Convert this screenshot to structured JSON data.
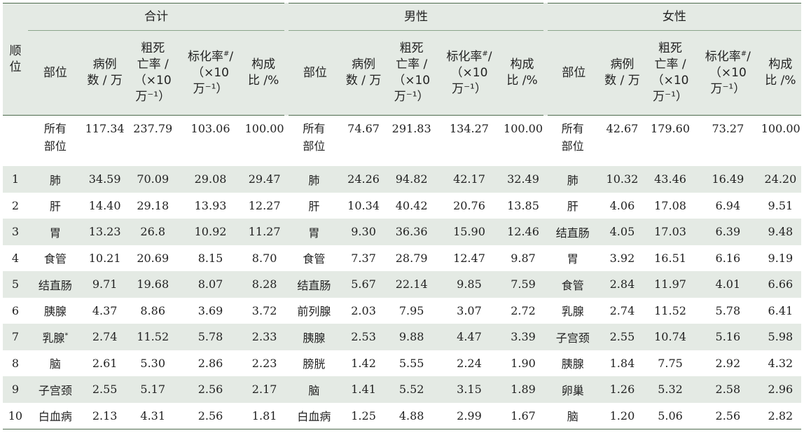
{
  "header": {
    "rank": "顺位",
    "groups": [
      "合计",
      "男性",
      "女性"
    ],
    "site": "部位",
    "cases_lines": [
      "病例",
      "数 / 万"
    ],
    "crude_lines": [
      "粗死",
      "亡率 /",
      "（×10",
      "万⁻¹）"
    ],
    "std_line1_pre": "标化率",
    "std_line1_sup": "#",
    "std_line1_post": "/",
    "std_line2": "（×10",
    "std_line3": "万⁻¹）",
    "prop_lines": [
      "构成",
      "比 /%"
    ]
  },
  "rows": [
    {
      "rank": "",
      "total": {
        "site": "所有\n部位",
        "cases": "117.34",
        "crude": "237.79",
        "std": "103.06",
        "prop": "100.00"
      },
      "male": {
        "site": "所有\n部位",
        "cases": "74.67",
        "crude": "291.83",
        "std": "134.27",
        "prop": "100.00"
      },
      "female": {
        "site": "所有\n部位",
        "cases": "42.67",
        "crude": "179.60",
        "std": "73.27",
        "prop": "100.00"
      }
    },
    {
      "rank": "1",
      "total": {
        "site": "肺",
        "cases": "34.59",
        "crude": "70.09",
        "std": "29.08",
        "prop": "29.47"
      },
      "male": {
        "site": "肺",
        "cases": "24.26",
        "crude": "94.82",
        "std": "42.17",
        "prop": "32.49"
      },
      "female": {
        "site": "肺",
        "cases": "10.32",
        "crude": "43.46",
        "std": "16.49",
        "prop": "24.20"
      }
    },
    {
      "rank": "2",
      "total": {
        "site": "肝",
        "cases": "14.40",
        "crude": "29.18",
        "std": "13.93",
        "prop": "12.27"
      },
      "male": {
        "site": "肝",
        "cases": "10.34",
        "crude": "40.42",
        "std": "20.76",
        "prop": "13.85"
      },
      "female": {
        "site": "肝",
        "cases": "4.06",
        "crude": "17.08",
        "std": "6.94",
        "prop": "9.51"
      }
    },
    {
      "rank": "3",
      "total": {
        "site": "胃",
        "cases": "13.23",
        "crude": "26.8",
        "std": "10.92",
        "prop": "11.27"
      },
      "male": {
        "site": "胃",
        "cases": "9.30",
        "crude": "36.36",
        "std": "15.90",
        "prop": "12.46"
      },
      "female": {
        "site": "结直肠",
        "cases": "4.05",
        "crude": "17.03",
        "std": "6.39",
        "prop": "9.48"
      }
    },
    {
      "rank": "4",
      "total": {
        "site": "食管",
        "cases": "10.21",
        "crude": "20.69",
        "std": "8.15",
        "prop": "8.70"
      },
      "male": {
        "site": "食管",
        "cases": "7.37",
        "crude": "28.79",
        "std": "12.47",
        "prop": "9.87"
      },
      "female": {
        "site": "胃",
        "cases": "3.92",
        "crude": "16.51",
        "std": "6.16",
        "prop": "9.19"
      }
    },
    {
      "rank": "5",
      "total": {
        "site": "结直肠",
        "cases": "9.71",
        "crude": "19.68",
        "std": "8.07",
        "prop": "8.28"
      },
      "male": {
        "site": "结直肠",
        "cases": "5.67",
        "crude": "22.14",
        "std": "9.85",
        "prop": "7.59"
      },
      "female": {
        "site": "食管",
        "cases": "2.84",
        "crude": "11.97",
        "std": "4.01",
        "prop": "6.66"
      }
    },
    {
      "rank": "6",
      "total": {
        "site": "胰腺",
        "cases": "4.37",
        "crude": "8.86",
        "std": "3.69",
        "prop": "3.72"
      },
      "male": {
        "site": "前列腺",
        "cases": "2.03",
        "crude": "7.95",
        "std": "3.07",
        "prop": "2.72"
      },
      "female": {
        "site": "乳腺",
        "cases": "2.74",
        "crude": "11.52",
        "std": "5.78",
        "prop": "6.41"
      }
    },
    {
      "rank": "7",
      "total": {
        "site": "乳腺",
        "site_sup": "*",
        "cases": "2.74",
        "crude": "11.52",
        "std": "5.78",
        "prop": "2.33"
      },
      "male": {
        "site": "胰腺",
        "cases": "2.53",
        "crude": "9.88",
        "std": "4.47",
        "prop": "3.39"
      },
      "female": {
        "site": "子宫颈",
        "cases": "2.55",
        "crude": "10.74",
        "std": "5.16",
        "prop": "5.98"
      }
    },
    {
      "rank": "8",
      "total": {
        "site": "脑",
        "cases": "2.61",
        "crude": "5.30",
        "std": "2.86",
        "prop": "2.23"
      },
      "male": {
        "site": "膀胱",
        "cases": "1.42",
        "crude": "5.55",
        "std": "2.24",
        "prop": "1.90"
      },
      "female": {
        "site": "胰腺",
        "cases": "1.84",
        "crude": "7.75",
        "std": "2.92",
        "prop": "4.32"
      }
    },
    {
      "rank": "9",
      "total": {
        "site": "子宫颈",
        "cases": "2.55",
        "crude": "5.17",
        "std": "2.56",
        "prop": "2.17"
      },
      "male": {
        "site": "脑",
        "cases": "1.41",
        "crude": "5.52",
        "std": "3.15",
        "prop": "1.89"
      },
      "female": {
        "site": "卵巢",
        "cases": "1.26",
        "crude": "5.32",
        "std": "2.58",
        "prop": "2.96"
      }
    },
    {
      "rank": "10",
      "total": {
        "site": "白血病",
        "cases": "2.13",
        "crude": "4.31",
        "std": "2.56",
        "prop": "1.81"
      },
      "male": {
        "site": "白血病",
        "cases": "1.25",
        "crude": "4.88",
        "std": "2.99",
        "prop": "1.67"
      },
      "female": {
        "site": "脑",
        "cases": "1.20",
        "crude": "5.06",
        "std": "2.56",
        "prop": "2.82"
      }
    }
  ]
}
